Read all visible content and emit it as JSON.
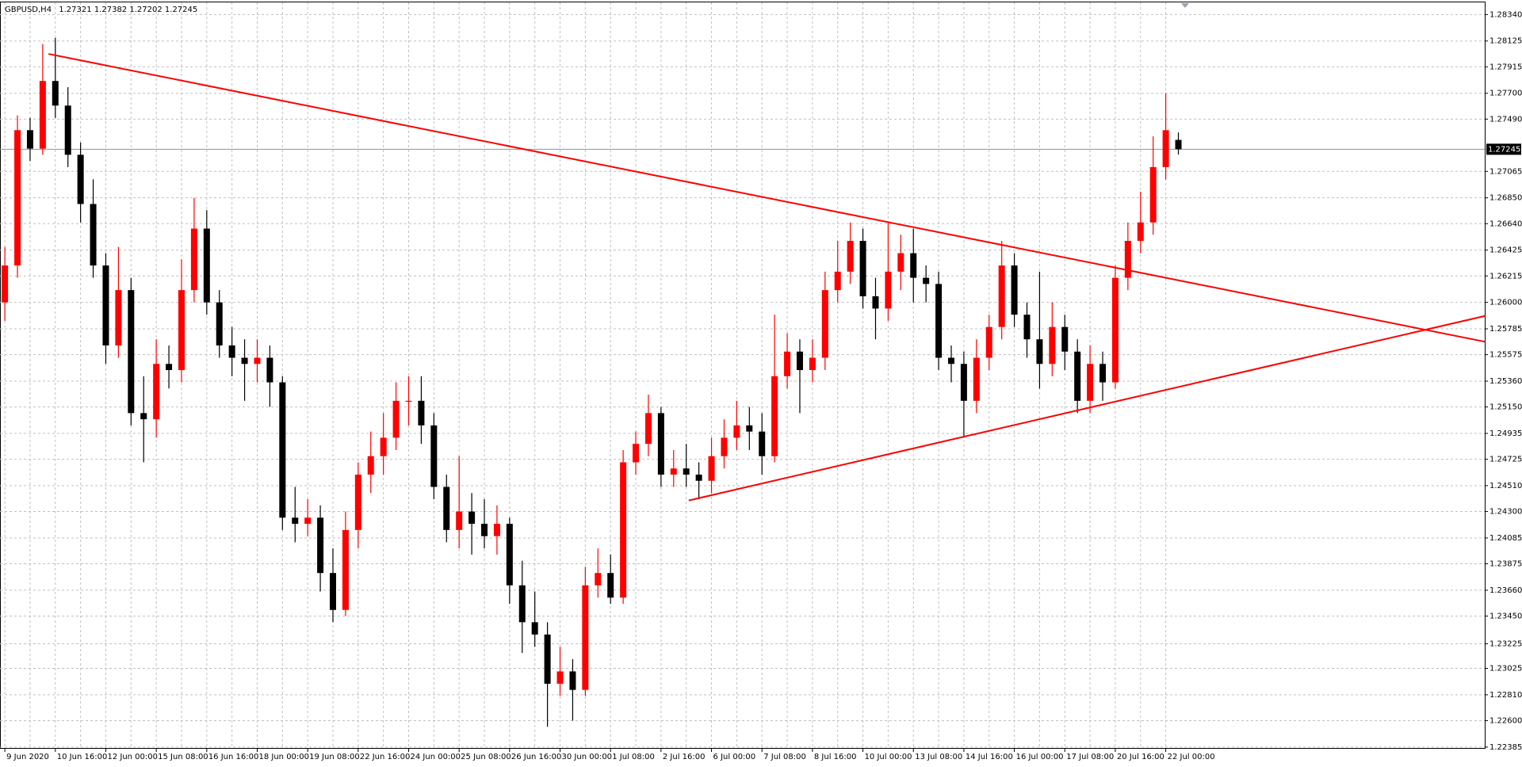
{
  "chart_data": {
    "type": "candlestick",
    "title": "GBPUSD,H4",
    "up_color": "#ff0000",
    "down_color": "#000000",
    "grid": true,
    "categories": [
      "9 Jun 2020",
      null,
      null,
      null,
      "10 Jun 16:00",
      null,
      null,
      null,
      "12 Jun 00:00",
      null,
      null,
      null,
      "15 Jun 08:00",
      null,
      null,
      null,
      "16 Jun 16:00",
      null,
      null,
      null,
      "18 Jun 00:00",
      null,
      null,
      null,
      "19 Jun 08:00",
      null,
      null,
      null,
      "22 Jun 16:00",
      null,
      null,
      null,
      "24 Jun 00:00",
      null,
      null,
      null,
      "25 Jun 08:00",
      null,
      null,
      null,
      "26 Jun 16:00",
      null,
      null,
      null,
      "30 Jun 00:00",
      null,
      null,
      null,
      "1 Jul 08:00",
      null,
      null,
      null,
      "2 Jul 16:00",
      null,
      null,
      null,
      "6 Jul 00:00",
      null,
      null,
      null,
      "7 Jul 08:00",
      null,
      null,
      null,
      "8 Jul 16:00",
      null,
      null,
      null,
      "10 Jul 00:00",
      null,
      null,
      null,
      "13 Jul 08:00",
      null,
      null,
      null,
      "14 Jul 16:00",
      null,
      null,
      null,
      "16 Jul 00:00",
      null,
      null,
      null,
      "17 Jul 08:00",
      null,
      null,
      null,
      "20 Jul 16:00",
      null,
      null,
      null,
      "22 Jul 00:00",
      null
    ],
    "open": [
      1.26,
      1.263,
      1.274,
      1.2725,
      1.278,
      1.276,
      1.272,
      1.268,
      1.263,
      1.2565,
      1.261,
      1.251,
      1.2505,
      1.255,
      1.2545,
      1.261,
      1.266,
      1.26,
      1.2565,
      1.2555,
      1.255,
      1.2555,
      1.2535,
      1.2425,
      1.242,
      1.2425,
      1.238,
      1.235,
      1.2415,
      1.246,
      1.2475,
      1.249,
      1.252,
      1.252,
      1.25,
      1.245,
      1.2415,
      1.243,
      1.242,
      1.241,
      1.242,
      1.237,
      1.234,
      1.233,
      1.229,
      1.23,
      1.2285,
      1.237,
      1.238,
      1.236,
      1.247,
      1.2485,
      1.251,
      1.246,
      1.2465,
      1.246,
      1.2455,
      1.2475,
      1.249,
      1.25,
      1.2495,
      1.2475,
      1.254,
      1.256,
      1.2545,
      1.2555,
      1.261,
      1.2625,
      1.265,
      1.2605,
      1.2595,
      1.2625,
      1.264,
      1.262,
      1.2615,
      1.2555,
      1.255,
      1.252,
      1.2555,
      1.258,
      1.263,
      1.259,
      1.257,
      1.255,
      1.258,
      1.256,
      1.252,
      1.255,
      1.2535,
      1.262,
      1.265,
      1.2665,
      1.271,
      1.27321
    ],
    "high": [
      1.2645,
      1.2752,
      1.275,
      1.281,
      1.2815,
      1.2775,
      1.273,
      1.27,
      1.264,
      1.2645,
      1.262,
      1.254,
      1.257,
      1.2565,
      1.2635,
      1.2685,
      1.2675,
      1.261,
      1.258,
      1.257,
      1.257,
      1.2565,
      1.254,
      1.245,
      1.244,
      1.2435,
      1.24,
      1.243,
      1.247,
      1.2495,
      1.251,
      1.2535,
      1.254,
      1.254,
      1.251,
      1.246,
      1.2475,
      1.2445,
      1.244,
      1.2435,
      1.2425,
      1.239,
      1.2365,
      1.234,
      1.232,
      1.231,
      1.2385,
      1.24,
      1.2395,
      1.248,
      1.2495,
      1.2525,
      1.2515,
      1.248,
      1.2485,
      1.247,
      1.249,
      1.2505,
      1.252,
      1.2515,
      1.251,
      1.259,
      1.2575,
      1.257,
      1.257,
      1.2625,
      1.265,
      1.2665,
      1.266,
      1.262,
      1.2665,
      1.2655,
      1.266,
      1.263,
      1.2625,
      1.2565,
      1.256,
      1.257,
      1.259,
      1.265,
      1.264,
      1.26,
      1.2625,
      1.26,
      1.259,
      1.257,
      1.2565,
      1.256,
      1.263,
      1.2665,
      1.269,
      1.2735,
      1.277,
      1.27382
    ],
    "low": [
      1.2585,
      1.262,
      1.2715,
      1.272,
      1.275,
      1.271,
      1.2665,
      1.262,
      1.255,
      1.2555,
      1.25,
      1.247,
      1.249,
      1.253,
      1.2535,
      1.26,
      1.259,
      1.2555,
      1.254,
      1.252,
      1.2535,
      1.2515,
      1.2415,
      1.2405,
      1.241,
      1.2365,
      1.234,
      1.2345,
      1.24,
      1.2445,
      1.246,
      1.248,
      1.25,
      1.2485,
      1.244,
      1.2405,
      1.24,
      1.2395,
      1.24,
      1.2395,
      1.2355,
      1.2315,
      1.232,
      1.2255,
      1.228,
      1.226,
      1.228,
      1.236,
      1.2355,
      1.2355,
      1.246,
      1.2475,
      1.245,
      1.245,
      1.245,
      1.244,
      1.2445,
      1.2465,
      1.248,
      1.248,
      1.246,
      1.247,
      1.253,
      1.251,
      1.2535,
      1.2545,
      1.26,
      1.2615,
      1.2595,
      1.257,
      1.2585,
      1.261,
      1.26,
      1.26,
      1.2545,
      1.2535,
      1.249,
      1.251,
      1.2545,
      1.257,
      1.258,
      1.2555,
      1.253,
      1.254,
      1.2545,
      1.251,
      1.251,
      1.252,
      1.253,
      1.261,
      1.264,
      1.2655,
      1.27,
      1.27202
    ],
    "close": [
      1.263,
      1.274,
      1.2725,
      1.278,
      1.276,
      1.272,
      1.268,
      1.263,
      1.2565,
      1.261,
      1.251,
      1.2505,
      1.255,
      1.2545,
      1.261,
      1.266,
      1.26,
      1.2565,
      1.2555,
      1.255,
      1.2555,
      1.2535,
      1.2425,
      1.242,
      1.2425,
      1.238,
      1.235,
      1.2415,
      1.246,
      1.2475,
      1.249,
      1.252,
      1.252,
      1.25,
      1.245,
      1.2415,
      1.243,
      1.242,
      1.241,
      1.242,
      1.237,
      1.234,
      1.233,
      1.229,
      1.23,
      1.2285,
      1.237,
      1.238,
      1.236,
      1.247,
      1.2485,
      1.251,
      1.246,
      1.2465,
      1.246,
      1.2455,
      1.2475,
      1.249,
      1.25,
      1.2495,
      1.2475,
      1.254,
      1.256,
      1.2545,
      1.2555,
      1.261,
      1.2625,
      1.265,
      1.2605,
      1.2595,
      1.2625,
      1.264,
      1.262,
      1.2615,
      1.2555,
      1.255,
      1.252,
      1.2555,
      1.258,
      1.263,
      1.259,
      1.257,
      1.255,
      1.258,
      1.256,
      1.252,
      1.255,
      1.2535,
      1.262,
      1.265,
      1.2665,
      1.271,
      1.274,
      1.27245
    ],
    "trendlines": [
      {
        "color": "#ff0000",
        "x": [
          3.46,
          117.3
        ],
        "y": [
          1.2802,
          1.2568
        ]
      },
      {
        "color": "#ff0000",
        "x": [
          54.2,
          117.3
        ],
        "y": [
          1.2439,
          1.2589
        ]
      }
    ],
    "ylim": [
      1.22385,
      1.2834
    ],
    "yticks": [
      {
        "value": 1.2834,
        "label": "1.28340"
      },
      1.28125,
      1.27915,
      {
        "value": 1.277,
        "label": "1.27700"
      },
      {
        "value": 1.2749,
        "label": "1.27490"
      },
      1.27065,
      {
        "value": 1.2685,
        "label": "1.26850"
      },
      {
        "value": 1.2664,
        "label": "1.26640"
      },
      1.26425,
      1.26215,
      {
        "value": 1.26,
        "label": "1.26000"
      },
      1.25785,
      1.25575,
      {
        "value": 1.2536,
        "label": "1.25360"
      },
      {
        "value": 1.2515,
        "label": "1.25150"
      },
      1.24935,
      1.24725,
      {
        "value": 1.2451,
        "label": "1.24510"
      },
      {
        "value": 1.243,
        "label": "1.24300"
      },
      1.24085,
      1.23875,
      {
        "value": 1.2366,
        "label": "1.23660"
      },
      {
        "value": 1.2345,
        "label": "1.23450"
      },
      1.23225,
      1.23025,
      {
        "value": 1.2281,
        "label": "1.22810"
      },
      {
        "value": 1.226,
        "label": "1.22600"
      },
      1.22385
    ]
  }
}
